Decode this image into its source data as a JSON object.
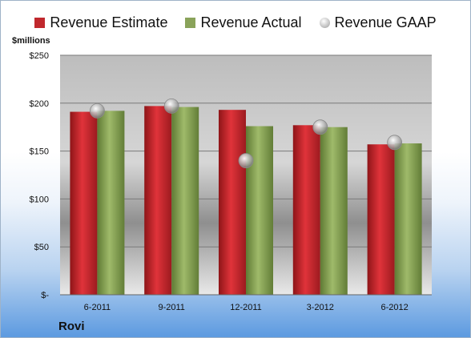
{
  "chart_data": {
    "type": "bar",
    "unit_label": "$millions",
    "company": "Rovi",
    "categories": [
      "6-2011",
      "9-2011",
      "12-2011",
      "3-2012",
      "6-2012"
    ],
    "series": [
      {
        "name": "Revenue Estimate",
        "kind": "bar",
        "color": "#c0282d",
        "values": [
          191,
          197,
          193,
          177,
          157
        ]
      },
      {
        "name": "Revenue Actual",
        "kind": "bar",
        "color": "#8aa35a",
        "values": [
          192,
          196,
          176,
          175,
          158
        ]
      },
      {
        "name": "Revenue GAAP",
        "kind": "marker",
        "color": "#bfbfbf",
        "values": [
          192,
          197,
          140,
          175,
          159
        ]
      }
    ],
    "ylim": [
      0,
      250
    ],
    "yticks": [
      0,
      50,
      100,
      150,
      200,
      250
    ],
    "ytick_labels": [
      "$-",
      "$50",
      "$100",
      "$150",
      "$200",
      "$250"
    ],
    "grid": true,
    "legend_position": "top"
  }
}
